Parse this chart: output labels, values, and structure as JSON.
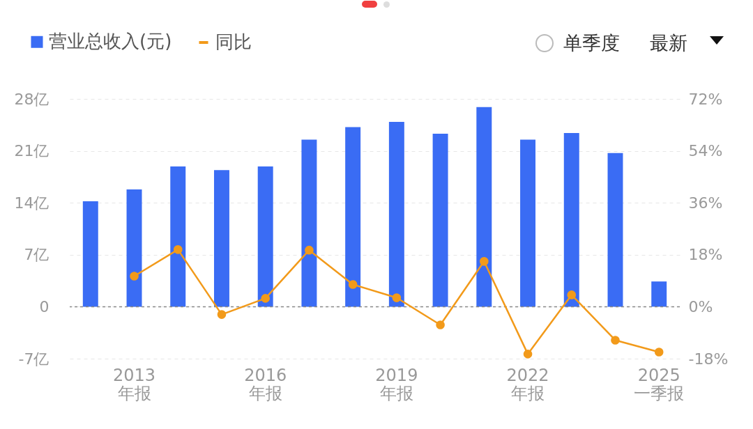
{
  "chart_data": {
    "type": "bar",
    "categories": [
      null,
      "2013\n年报",
      null,
      null,
      "2016\n年报",
      null,
      null,
      "2019\n年报",
      null,
      null,
      "2022\n年报",
      null,
      null,
      "2025\n一季报"
    ],
    "series": [
      {
        "name": "营业总收入(元)",
        "color": "#3a6cf4",
        "values": [
          14.2,
          15.8,
          18.9,
          18.4,
          18.9,
          22.5,
          24.2,
          24.9,
          23.3,
          26.9,
          22.5,
          23.4,
          20.7,
          3.4
        ]
      },
      {
        "name": "同比",
        "type": "line",
        "axis": "y2",
        "color": "#f29a1a",
        "values": [
          null,
          10.6,
          19.8,
          -2.7,
          2.9,
          19.6,
          7.7,
          3.1,
          -6.3,
          15.7,
          -16.4,
          4.1,
          -11.6,
          -15.7
        ]
      }
    ],
    "ylim": [
      -7,
      28
    ],
    "yticks": [
      {
        "value": -7,
        "label": "-7亿"
      },
      0,
      {
        "value": 7,
        "label": "7亿"
      },
      {
        "value": 14,
        "label": "14亿"
      },
      {
        "value": 21,
        "label": "21亿"
      },
      {
        "value": 28,
        "label": "28亿"
      }
    ],
    "y2lim": [
      -18,
      72
    ],
    "y2ticks": [
      {
        "value": -18,
        "label": "-18%"
      },
      {
        "value": 0,
        "label": "0%"
      },
      {
        "value": 18,
        "label": "18%"
      },
      {
        "value": 36,
        "label": "36%"
      },
      {
        "value": 54,
        "label": "54%"
      },
      {
        "value": 72,
        "label": "72%"
      }
    ],
    "ref_lines": [
      {
        "axis": "y",
        "value": 0,
        "color": "#888888",
        "line_style": "dashed"
      }
    ],
    "grid": "y",
    "legend": "top left",
    "marker": "circle",
    "annotations": [
      "单季度",
      "最新"
    ]
  }
}
